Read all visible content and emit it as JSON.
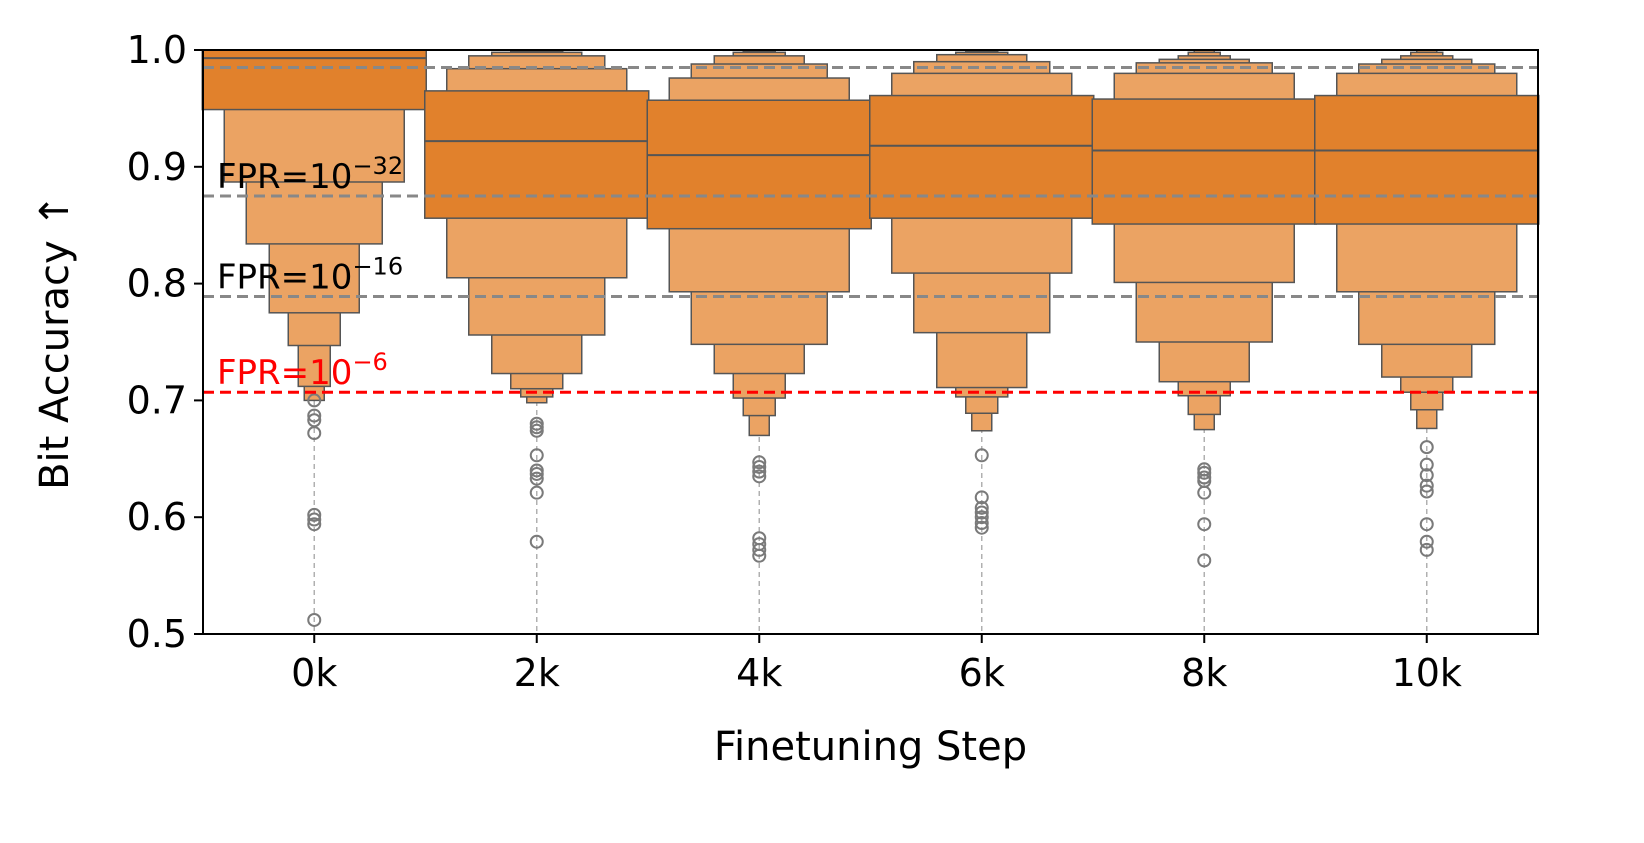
{
  "chart_data": {
    "type": "boxen",
    "xlabel": "Finetuning Step",
    "ylabel": "Bit Accuracy ↑",
    "ylim": [
      0.5,
      1.0
    ],
    "yticks": [
      "0.5",
      "0.6",
      "0.7",
      "0.8",
      "0.9",
      "1.0"
    ],
    "categories": [
      "0k",
      "2k",
      "4k",
      "6k",
      "8k",
      "10k"
    ],
    "grid": "dashed vertical at categories",
    "colors": {
      "box_dark": "#e1812c",
      "box_light": "#eba363",
      "edge": "#555555",
      "threshold": "#888888",
      "threshold_red": "#ff0000"
    },
    "thresholds": [
      {
        "y": 0.985,
        "label": "",
        "color": "#888888"
      },
      {
        "y": 0.875,
        "label": "FPR=10",
        "exp": "−32",
        "color": "#888888",
        "label_color": "#000000"
      },
      {
        "y": 0.789,
        "label": "FPR=10",
        "exp": "−16",
        "color": "#888888",
        "label_color": "#000000"
      },
      {
        "y": 0.707,
        "label": "FPR=10",
        "exp": "−6",
        "color": "#ff0000",
        "label_color": "#ff0000"
      }
    ],
    "series": [
      {
        "category": "0k",
        "median": 0.993,
        "levels": [
          [
            0.949,
            1.0
          ],
          [
            0.887,
            1.0
          ],
          [
            0.834,
            1.0
          ],
          [
            0.775,
            1.0
          ],
          [
            0.747,
            1.0
          ],
          [
            0.712,
            1.0
          ],
          [
            0.7,
            1.0
          ]
        ],
        "outliers": [
          0.7,
          0.687,
          0.683,
          0.672,
          0.602,
          0.598,
          0.594,
          0.512
        ]
      },
      {
        "category": "2k",
        "median": 0.922,
        "levels": [
          [
            0.856,
            0.965
          ],
          [
            0.805,
            0.984
          ],
          [
            0.756,
            0.995
          ],
          [
            0.723,
            0.998
          ],
          [
            0.71,
            0.999
          ],
          [
            0.703,
            1.0
          ],
          [
            0.698,
            1.0
          ]
        ],
        "outliers": [
          0.68,
          0.677,
          0.674,
          0.653,
          0.64,
          0.637,
          0.633,
          0.621,
          0.579
        ]
      },
      {
        "category": "4k",
        "median": 0.91,
        "levels": [
          [
            0.847,
            0.957
          ],
          [
            0.793,
            0.976
          ],
          [
            0.748,
            0.988
          ],
          [
            0.723,
            0.995
          ],
          [
            0.702,
            0.998
          ],
          [
            0.687,
            0.999
          ],
          [
            0.67,
            1.0
          ]
        ],
        "outliers": [
          0.647,
          0.643,
          0.639,
          0.635,
          0.582,
          0.577,
          0.572,
          0.567
        ]
      },
      {
        "category": "6k",
        "median": 0.918,
        "levels": [
          [
            0.856,
            0.961
          ],
          [
            0.809,
            0.98
          ],
          [
            0.758,
            0.99
          ],
          [
            0.711,
            0.996
          ],
          [
            0.703,
            0.998
          ],
          [
            0.689,
            0.999
          ],
          [
            0.674,
            1.0
          ]
        ],
        "outliers": [
          0.653,
          0.617,
          0.608,
          0.604,
          0.6,
          0.595,
          0.591
        ]
      },
      {
        "category": "8k",
        "median": 0.914,
        "levels": [
          [
            0.851,
            0.958
          ],
          [
            0.801,
            0.98
          ],
          [
            0.75,
            0.989
          ],
          [
            0.716,
            0.992
          ],
          [
            0.704,
            0.995
          ],
          [
            0.688,
            0.998
          ],
          [
            0.675,
            1.0
          ]
        ],
        "outliers": [
          0.641,
          0.638,
          0.634,
          0.631,
          0.621,
          0.594,
          0.563
        ]
      },
      {
        "category": "10k",
        "median": 0.914,
        "levels": [
          [
            0.851,
            0.961
          ],
          [
            0.793,
            0.98
          ],
          [
            0.748,
            0.988
          ],
          [
            0.72,
            0.992
          ],
          [
            0.707,
            0.995
          ],
          [
            0.692,
            0.998
          ],
          [
            0.676,
            1.0
          ]
        ],
        "outliers": [
          0.66,
          0.645,
          0.636,
          0.627,
          0.622,
          0.594,
          0.579,
          0.572
        ]
      }
    ]
  }
}
